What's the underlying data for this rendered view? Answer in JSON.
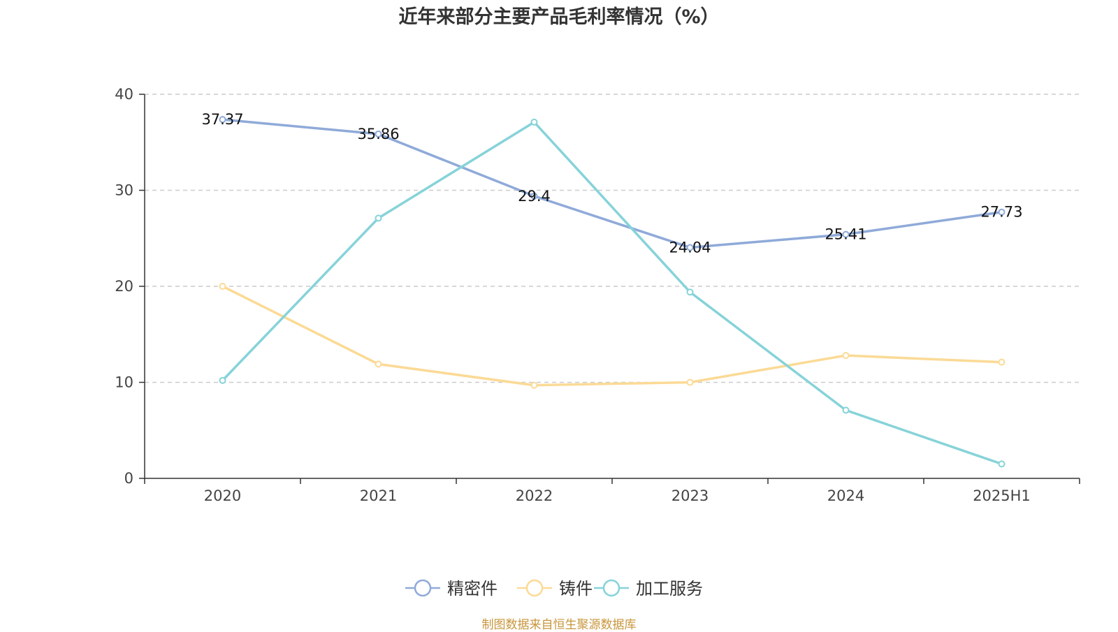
{
  "chart_data": {
    "type": "line",
    "title": "近年来部分主要产品毛利率情况（%）",
    "categories": [
      "2020",
      "2021",
      "2022",
      "2023",
      "2024",
      "2025H1"
    ],
    "ylim": [
      0,
      40
    ],
    "yticks": [
      0,
      10,
      20,
      30,
      40
    ],
    "grid": true,
    "legend_position": "bottom",
    "series": [
      {
        "name": "精密件",
        "color": "#8FAAD9",
        "values": [
          37.37,
          35.86,
          29.4,
          24.04,
          25.41,
          27.73
        ],
        "show_labels": true
      },
      {
        "name": "铸件",
        "color": "#FBDA96",
        "values": [
          20.0,
          11.9,
          9.7,
          10.0,
          12.8,
          12.1
        ],
        "show_labels": false
      },
      {
        "name": "加工服务",
        "color": "#86D3D9",
        "values": [
          10.2,
          27.1,
          37.1,
          19.4,
          7.1,
          1.5
        ],
        "show_labels": false
      }
    ]
  },
  "source": "制图数据来自恒生聚源数据库"
}
